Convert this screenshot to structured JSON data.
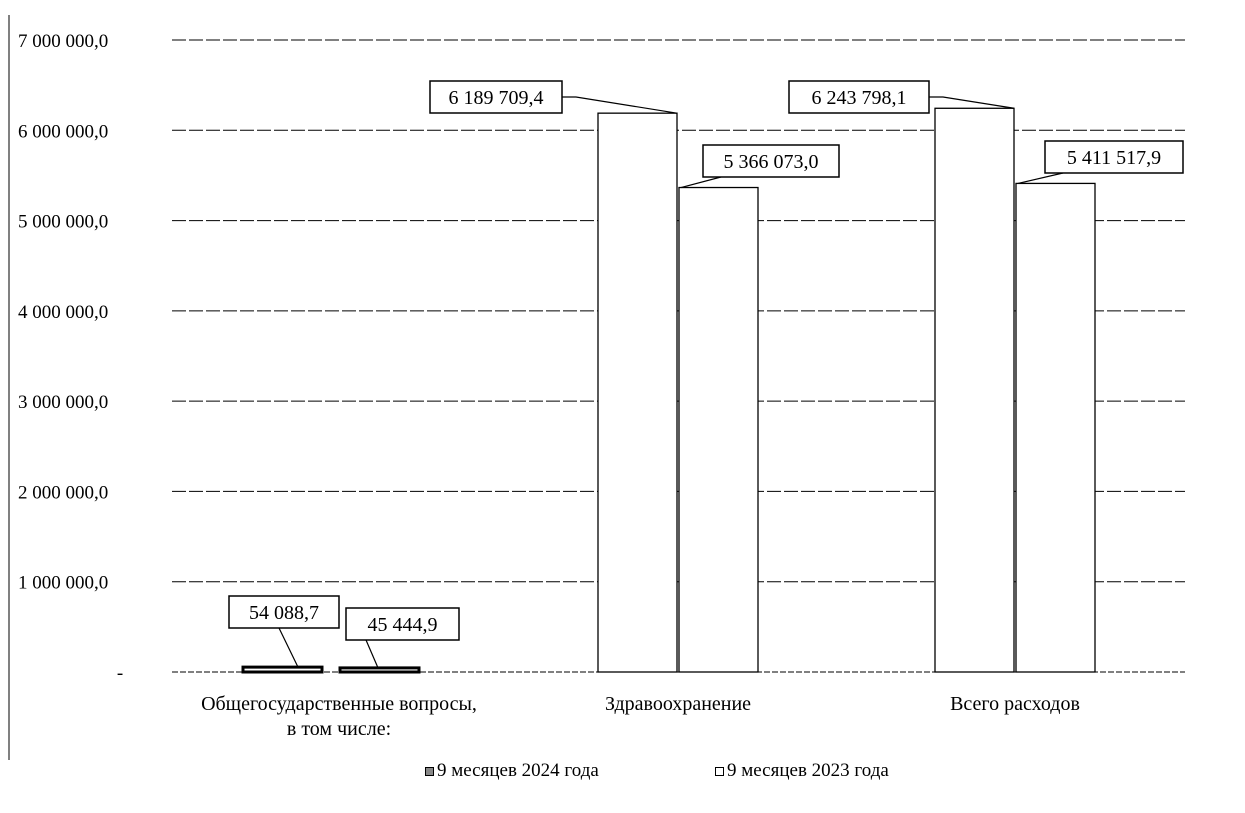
{
  "chart_data": {
    "type": "bar",
    "categories": [
      [
        "Общегосударственные вопросы,",
        "в том числе:"
      ],
      [
        "Здравоохранение"
      ],
      [
        "Всего расходов"
      ]
    ],
    "series": [
      {
        "name": "9 месяцев 2024 года",
        "values": [
          54088.7,
          6189709.4,
          6243798.1
        ],
        "labels": [
          "54 088,7",
          "6 189 709,4",
          "6 243 798,1"
        ]
      },
      {
        "name": "9 месяцев  2023 года",
        "values": [
          45444.9,
          5366073.0,
          5411517.9
        ],
        "labels": [
          "45 444,9",
          "5 366 073,0",
          "5 411 517,9"
        ]
      }
    ],
    "ylim": [
      0,
      7000000
    ],
    "yticks": [
      {
        "value": 0,
        "label": "-"
      },
      {
        "value": 1000000,
        "label": "1 000 000,0"
      },
      {
        "value": 2000000,
        "label": "2 000 000,0"
      },
      {
        "value": 3000000,
        "label": "3 000 000,0"
      },
      {
        "value": 4000000,
        "label": "4 000 000,0"
      },
      {
        "value": 5000000,
        "label": "5 000 000,0"
      },
      {
        "value": 6000000,
        "label": "6 000 000,0"
      },
      {
        "value": 7000000,
        "label": "7 000 000,0"
      }
    ],
    "grid": true,
    "legend_position": "bottom",
    "colors": {
      "series_2024": "#ffffff",
      "series_2023": "#ffffff",
      "bar_stroke": "#000000",
      "grid": "#000000"
    }
  }
}
